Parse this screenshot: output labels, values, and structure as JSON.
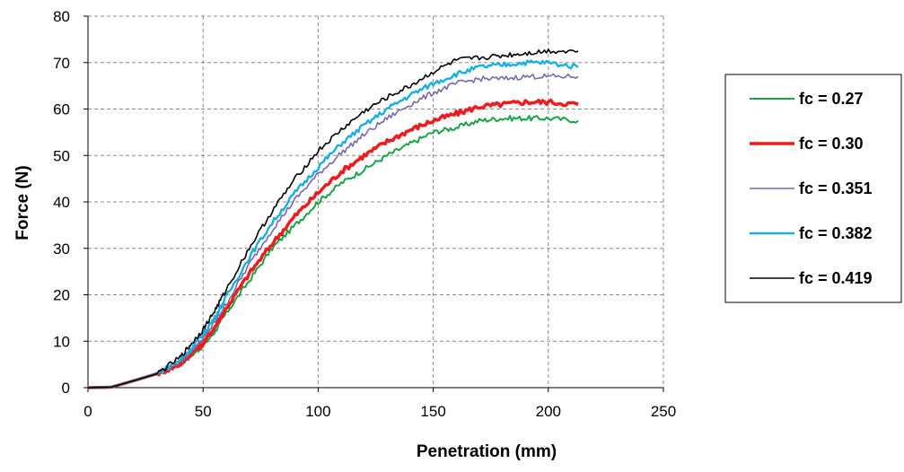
{
  "chart_data": {
    "type": "line",
    "title": "",
    "xlabel": "Penetration (mm)",
    "ylabel": "Force (N)",
    "xlim": [
      0,
      250
    ],
    "ylim": [
      0,
      80
    ],
    "xticks": [
      0,
      50,
      100,
      150,
      200,
      250
    ],
    "yticks": [
      0,
      10,
      20,
      30,
      40,
      50,
      60,
      70,
      80
    ],
    "grid": true,
    "legend_position": "right",
    "series": [
      {
        "name": "fc = 0.27",
        "color": "#1aa34a",
        "x": [
          0,
          10,
          20,
          30,
          40,
          45,
          50,
          55,
          60,
          70,
          80,
          90,
          100,
          110,
          120,
          130,
          140,
          150,
          160,
          170,
          180,
          190,
          200,
          213
        ],
        "y": [
          0,
          0.1,
          1.5,
          3,
          5,
          7,
          9,
          12,
          16,
          23,
          30,
          35,
          40,
          44,
          47,
          50,
          52.5,
          55,
          56,
          57.5,
          58,
          58,
          58,
          57.5
        ]
      },
      {
        "name": "fc = 0.30",
        "color": "#ee1c1c",
        "x": [
          0,
          10,
          20,
          30,
          40,
          45,
          50,
          55,
          60,
          70,
          80,
          90,
          100,
          110,
          120,
          130,
          140,
          150,
          160,
          170,
          180,
          190,
          200,
          213
        ],
        "y": [
          0,
          0.1,
          1.5,
          3,
          5,
          7.5,
          9.5,
          13,
          17,
          24.5,
          31,
          37,
          42,
          46.5,
          50,
          53,
          55.5,
          57.5,
          59,
          60.5,
          61,
          61.5,
          61.5,
          61
        ]
      },
      {
        "name": "fc = 0.351",
        "color": "#7a67a8",
        "x": [
          0,
          10,
          20,
          30,
          40,
          45,
          50,
          55,
          60,
          70,
          80,
          90,
          100,
          110,
          120,
          130,
          140,
          150,
          160,
          170,
          180,
          190,
          200,
          213
        ],
        "y": [
          0,
          0.1,
          1.5,
          3,
          5.5,
          8,
          10.5,
          14,
          18,
          26.5,
          34,
          40.5,
          46,
          50.5,
          54.5,
          58,
          61,
          63.5,
          65.5,
          66.5,
          66.5,
          67,
          67,
          67
        ]
      },
      {
        "name": "fc = 0.382",
        "color": "#1aaee3",
        "x": [
          0,
          10,
          20,
          30,
          40,
          45,
          50,
          55,
          60,
          70,
          80,
          90,
          100,
          110,
          120,
          130,
          140,
          150,
          160,
          170,
          180,
          190,
          200,
          213
        ],
        "y": [
          0,
          0.1,
          1.5,
          3,
          6,
          8.5,
          11.5,
          15,
          19.5,
          28,
          35.5,
          42,
          47.5,
          52.5,
          56.5,
          60,
          63,
          65.5,
          67.5,
          69,
          69.5,
          70,
          70,
          69
        ]
      },
      {
        "name": "fc = 0.419",
        "color": "#000000",
        "x": [
          0,
          10,
          20,
          30,
          40,
          45,
          50,
          55,
          60,
          70,
          80,
          90,
          100,
          110,
          120,
          130,
          140,
          150,
          160,
          170,
          180,
          190,
          200,
          213
        ],
        "y": [
          0,
          0.1,
          1.5,
          3,
          6.5,
          9.5,
          12.5,
          16.5,
          21,
          30,
          38,
          45,
          51,
          55.5,
          59.5,
          62.5,
          65,
          68,
          70.5,
          71,
          71.5,
          72,
          72.5,
          72.5
        ]
      }
    ]
  }
}
